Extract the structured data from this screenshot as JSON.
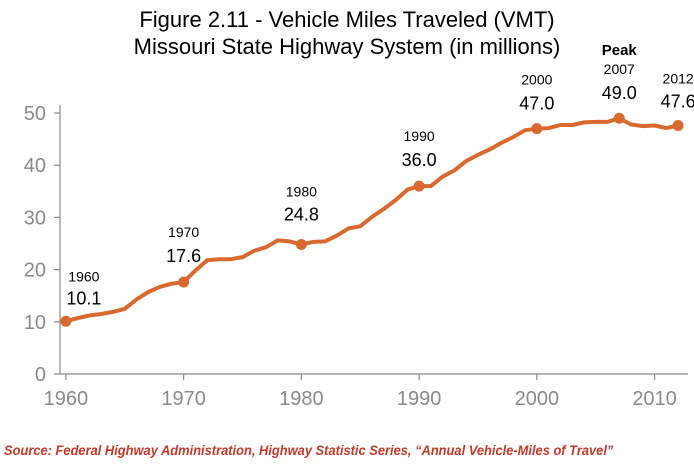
{
  "chart_data": {
    "type": "line",
    "title_line1": "Figure 2.11 - Vehicle Miles Traveled (VMT)",
    "title_line2": "Missouri State Highway System (in millions)",
    "xlabel": "",
    "ylabel": "",
    "xlim": [
      1959.5,
      2012.5
    ],
    "ylim": [
      0,
      50
    ],
    "x_ticks": [
      "1960",
      "1970",
      "1980",
      "1990",
      "2000",
      "2010"
    ],
    "y_ticks": [
      "0",
      "10",
      "20",
      "30",
      "40",
      "50"
    ],
    "grid": false,
    "color": "#d9692f",
    "series": [
      {
        "x": [
          1960,
          1961,
          1962,
          1963,
          1964,
          1965,
          1966,
          1967,
          1968,
          1969,
          1970,
          1971,
          1972,
          1973,
          1974,
          1975,
          1976,
          1977,
          1978,
          1979,
          1980,
          1981,
          1982,
          1983,
          1984,
          1985,
          1986,
          1987,
          1988,
          1989,
          1990,
          1991,
          1992,
          1993,
          1994,
          1995,
          1996,
          1997,
          1998,
          1999,
          2000,
          2001,
          2002,
          2003,
          2004,
          2005,
          2006,
          2007,
          2008,
          2009,
          2010,
          2011,
          2012
        ],
        "values": [
          10.1,
          10.7,
          11.2,
          11.5,
          11.9,
          12.5,
          14.3,
          15.7,
          16.7,
          17.3,
          17.6,
          19.8,
          21.8,
          22.0,
          22.0,
          22.4,
          23.6,
          24.3,
          25.6,
          25.4,
          24.8,
          25.3,
          25.4,
          26.5,
          27.9,
          28.3,
          30.1,
          31.6,
          33.3,
          35.3,
          36.0,
          36.0,
          37.8,
          39.0,
          40.8,
          42.0,
          43.0,
          44.3,
          45.4,
          46.7,
          47.0,
          47.1,
          47.7,
          47.7,
          48.2,
          48.3,
          48.3,
          49.0,
          47.8,
          47.5,
          47.6,
          47.1,
          47.6
        ]
      }
    ],
    "annotations": [
      {
        "x": 1960,
        "year": "1960",
        "value": "10.1"
      },
      {
        "x": 1970,
        "year": "1970",
        "value": "17.6"
      },
      {
        "x": 1980,
        "year": "1980",
        "value": "24.8"
      },
      {
        "x": 1990,
        "year": "1990",
        "value": "36.0"
      },
      {
        "x": 2000,
        "year": "2000",
        "value": "47.0"
      },
      {
        "x": 2007,
        "year": "2007",
        "value": "49.0",
        "note": "Peak"
      },
      {
        "x": 2012,
        "year": "2012",
        "value": "47.6"
      }
    ],
    "source": "Source: Federal Highway Administration, Highway Statistic Series, “Annual Vehicle-Miles of Travel”"
  }
}
